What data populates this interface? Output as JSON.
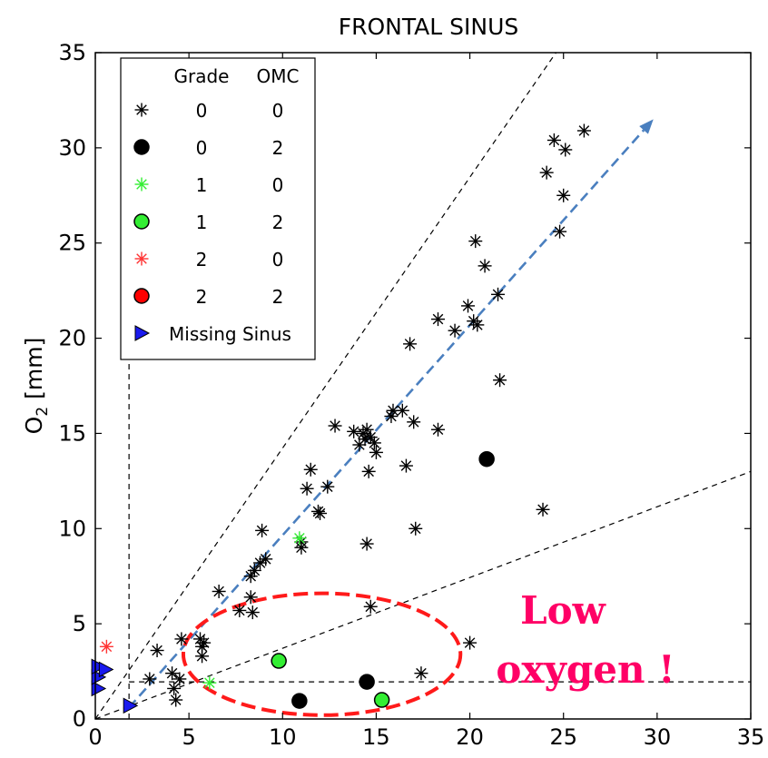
{
  "chart_data": {
    "type": "scatter",
    "title": "FRONTAL SINUS",
    "xlabel": "",
    "ylabel": "O2 [mm]",
    "xlim": [
      0,
      35
    ],
    "ylim": [
      0,
      35
    ],
    "x_ticks": [
      0,
      5,
      10,
      15,
      20,
      25,
      30,
      35
    ],
    "y_ticks": [
      0,
      5,
      10,
      15,
      20,
      25,
      30,
      35
    ],
    "grid": false,
    "legend": {
      "position": "top-left",
      "headers": [
        "Grade",
        "OMC"
      ],
      "entries": [
        {
          "grade": "0",
          "omc": "0",
          "marker": "asterisk",
          "color": "#000000"
        },
        {
          "grade": "0",
          "omc": "2",
          "marker": "circle",
          "color": "#000000"
        },
        {
          "grade": "1",
          "omc": "0",
          "marker": "asterisk",
          "color": "#33ee33"
        },
        {
          "grade": "1",
          "omc": "2",
          "marker": "circle",
          "color": "#33ee33"
        },
        {
          "grade": "2",
          "omc": "0",
          "marker": "asterisk",
          "color": "#ff3333"
        },
        {
          "grade": "2",
          "omc": "2",
          "marker": "circle",
          "color": "#ff0000"
        },
        {
          "label": "Missing Sinus",
          "marker": "triangle-right",
          "color": "#1a1aee"
        }
      ]
    },
    "series": [
      {
        "grade": "0",
        "omc": "0",
        "marker": "asterisk",
        "color": "#000000",
        "points": [
          [
            2.9,
            2.1
          ],
          [
            3.3,
            3.6
          ],
          [
            4.1,
            2.4
          ],
          [
            4.2,
            1.6
          ],
          [
            4.3,
            1.0
          ],
          [
            4.5,
            2.1
          ],
          [
            4.6,
            4.2
          ],
          [
            5.6,
            4.2
          ],
          [
            5.7,
            3.8
          ],
          [
            5.7,
            3.3
          ],
          [
            5.8,
            4.0
          ],
          [
            6.6,
            6.7
          ],
          [
            7.7,
            5.7
          ],
          [
            8.3,
            7.5
          ],
          [
            8.3,
            6.4
          ],
          [
            8.4,
            5.6
          ],
          [
            8.5,
            7.8
          ],
          [
            8.8,
            8.2
          ],
          [
            8.9,
            9.9
          ],
          [
            9.1,
            8.4
          ],
          [
            11.0,
            9.3
          ],
          [
            11.0,
            9.0
          ],
          [
            11.3,
            12.1
          ],
          [
            11.5,
            13.1
          ],
          [
            11.9,
            10.9
          ],
          [
            12.0,
            10.8
          ],
          [
            12.4,
            12.2
          ],
          [
            12.8,
            15.4
          ],
          [
            13.8,
            15.1
          ],
          [
            14.1,
            14.4
          ],
          [
            14.3,
            15.0
          ],
          [
            14.4,
            14.7
          ],
          [
            14.5,
            15.2
          ],
          [
            14.6,
            13.0
          ],
          [
            14.7,
            14.8
          ],
          [
            14.9,
            14.5
          ],
          [
            15.0,
            14.0
          ],
          [
            15.8,
            15.9
          ],
          [
            15.9,
            16.2
          ],
          [
            16.4,
            16.2
          ],
          [
            16.6,
            13.3
          ],
          [
            16.8,
            19.7
          ],
          [
            17.0,
            15.6
          ],
          [
            17.1,
            10.0
          ],
          [
            18.3,
            21.0
          ],
          [
            18.3,
            15.2
          ],
          [
            19.2,
            20.4
          ],
          [
            19.9,
            21.7
          ],
          [
            20.2,
            20.9
          ],
          [
            20.3,
            25.1
          ],
          [
            20.4,
            20.7
          ],
          [
            20.8,
            23.8
          ],
          [
            21.5,
            22.3
          ],
          [
            21.6,
            17.8
          ],
          [
            23.9,
            11.0
          ],
          [
            24.1,
            28.7
          ],
          [
            24.5,
            30.4
          ],
          [
            24.8,
            25.6
          ],
          [
            25.0,
            27.5
          ],
          [
            25.1,
            29.9
          ],
          [
            26.1,
            30.9
          ],
          [
            14.5,
            9.2
          ],
          [
            14.7,
            5.9
          ],
          [
            17.4,
            2.4
          ],
          [
            20.0,
            4.0
          ]
        ]
      },
      {
        "grade": "0",
        "omc": "2",
        "marker": "circle",
        "color": "#000000",
        "points": [
          [
            10.9,
            0.95
          ],
          [
            14.5,
            1.95
          ],
          [
            20.9,
            13.65
          ]
        ]
      },
      {
        "grade": "1",
        "omc": "0",
        "marker": "asterisk",
        "color": "#33ee33",
        "points": [
          [
            6.1,
            1.9
          ],
          [
            10.9,
            9.5
          ]
        ]
      },
      {
        "grade": "1",
        "omc": "2",
        "marker": "circle",
        "color": "#33ee33",
        "points": [
          [
            9.8,
            3.05
          ],
          [
            15.3,
            1.0
          ]
        ]
      },
      {
        "grade": "2",
        "omc": "0",
        "marker": "asterisk",
        "color": "#ff3333",
        "points": [
          [
            0.6,
            3.8
          ]
        ]
      },
      {
        "grade": "2",
        "omc": "2",
        "marker": "circle",
        "color": "#ff0000",
        "points": []
      },
      {
        "label": "Missing Sinus",
        "marker": "triangle-right",
        "color": "#1a1aee",
        "points": [
          [
            0.15,
            1.6
          ],
          [
            0.15,
            2.2
          ],
          [
            0.15,
            2.75
          ],
          [
            0.55,
            2.6
          ],
          [
            1.85,
            0.7
          ]
        ]
      }
    ],
    "reference_lines": [
      {
        "style": "dashed",
        "color": "#000000",
        "from": [
          0,
          0
        ],
        "to": [
          24.6,
          35
        ]
      },
      {
        "style": "dashed",
        "color": "#000000",
        "from": [
          0,
          0
        ],
        "to": [
          35,
          13.0
        ]
      },
      {
        "style": "dashed",
        "color": "#000000",
        "from": [
          1.8,
          0
        ],
        "to": [
          1.8,
          19.4
        ]
      },
      {
        "style": "dashed",
        "color": "#000000",
        "from": [
          1.8,
          1.95
        ],
        "to": [
          35,
          1.95
        ]
      }
    ],
    "trend_arrow": {
      "style": "dashed",
      "color": "#4a7fbf",
      "from": [
        1.8,
        0.6
      ],
      "to": [
        29.8,
        31.5
      ]
    },
    "annotation": {
      "text_line1": "Low",
      "text_line2": "oxygen !",
      "color": "#ff0066",
      "ellipse_color": "#ff1a1a",
      "ellipse_center": [
        12.1,
        3.4
      ],
      "ellipse_radii": [
        7.4,
        3.2
      ]
    }
  }
}
